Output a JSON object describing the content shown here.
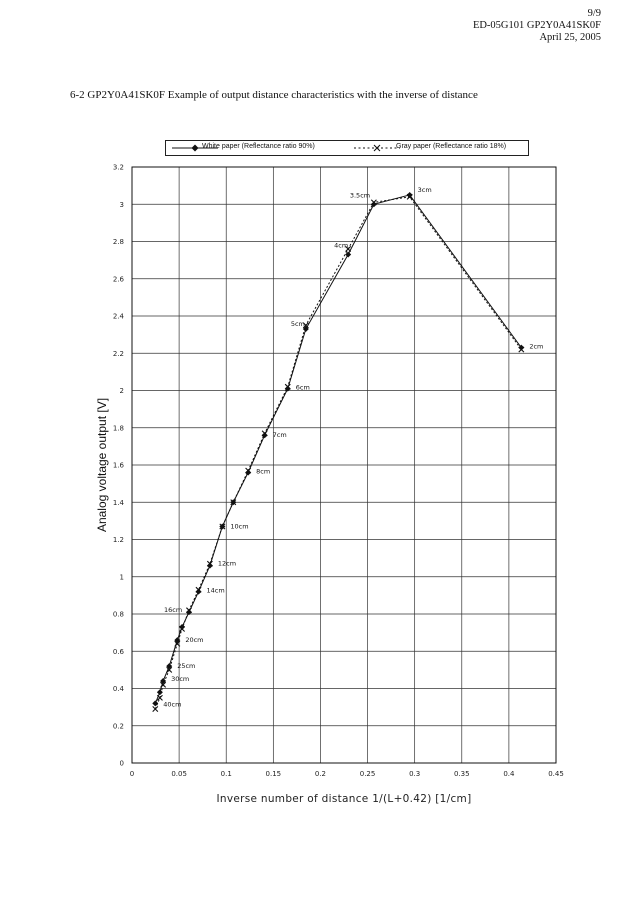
{
  "header": {
    "page": "9/9",
    "doc": "ED-05G101  GP2Y0A41SK0F",
    "date": "April 25, 2005"
  },
  "section_title": "6-2   GP2Y0A41SK0F Example of output distance characteristics with the inverse of distance",
  "chart_data": {
    "type": "line",
    "ylabel": "Analog voltage output [V]",
    "xlabel": "Inverse number of distance    1/(L+0.42)  [1/cm]",
    "xlim": [
      0,
      0.45
    ],
    "ylim": [
      0,
      3.2
    ],
    "xticks": [
      "0",
      "0.05",
      "0.1",
      "0.15",
      "0.2",
      "0.25",
      "0.3",
      "0.35",
      "0.4",
      "0.45"
    ],
    "yticks": [
      "0",
      "0.2",
      "0.4",
      "0.6",
      "0.8",
      "1",
      "1.2",
      "1.4",
      "1.6",
      "1.8",
      "2",
      "2.2",
      "2.4",
      "2.6",
      "2.8",
      "3",
      "3.2"
    ],
    "grid": true,
    "legend_position": "top",
    "series": [
      {
        "name": "White paper (Reflectance ratio 90%)",
        "style": "solid-diamond",
        "color": "#111111",
        "x": [
          0.0247,
          0.0296,
          0.033,
          0.0395,
          0.0481,
          0.0531,
          0.0605,
          0.0706,
          0.0827,
          0.0959,
          0.1075,
          0.1233,
          0.1408,
          0.1653,
          0.1845,
          0.2294,
          0.2567,
          0.2947,
          0.4132
        ],
        "y": [
          0.32,
          0.38,
          0.44,
          0.52,
          0.66,
          0.73,
          0.81,
          0.92,
          1.06,
          1.27,
          1.4,
          1.56,
          1.76,
          2.01,
          2.33,
          2.73,
          3.0,
          3.05,
          2.23
        ]
      },
      {
        "name": "Gray paper (Reflectance ratio 18%)",
        "style": "dashed-x",
        "color": "#111111",
        "x": [
          0.0247,
          0.0296,
          0.033,
          0.0395,
          0.0481,
          0.0531,
          0.0605,
          0.0706,
          0.0827,
          0.0959,
          0.1075,
          0.1233,
          0.1408,
          0.1653,
          0.1845,
          0.2294,
          0.2567,
          0.2947,
          0.4132
        ],
        "y": [
          0.29,
          0.35,
          0.42,
          0.5,
          0.64,
          0.72,
          0.82,
          0.93,
          1.07,
          1.27,
          1.4,
          1.57,
          1.77,
          2.02,
          2.35,
          2.76,
          3.01,
          3.04,
          2.22
        ]
      }
    ],
    "annotations": [
      {
        "text": "40cm",
        "x": 0.0247,
        "y": 0.32
      },
      {
        "text": "30cm",
        "x": 0.033,
        "y": 0.44
      },
      {
        "text": "25cm",
        "x": 0.0395,
        "y": 0.52
      },
      {
        "text": "20cm",
        "x": 0.0481,
        "y": 0.66
      },
      {
        "text": "16cm",
        "x": 0.0605,
        "y": 0.81
      },
      {
        "text": "14cm",
        "x": 0.0706,
        "y": 0.92
      },
      {
        "text": "12cm",
        "x": 0.0827,
        "y": 1.06
      },
      {
        "text": "10cm",
        "x": 0.0959,
        "y": 1.27
      },
      {
        "text": "8cm",
        "x": 0.1233,
        "y": 1.56
      },
      {
        "text": "7cm",
        "x": 0.1408,
        "y": 1.76
      },
      {
        "text": "6cm",
        "x": 0.1653,
        "y": 2.01
      },
      {
        "text": "5cm",
        "x": 0.1845,
        "y": 2.33
      },
      {
        "text": "4cm",
        "x": 0.2294,
        "y": 2.73
      },
      {
        "text": "3.5cm",
        "x": 0.2567,
        "y": 3.0
      },
      {
        "text": "3cm",
        "x": 0.2947,
        "y": 3.05
      },
      {
        "text": "2cm",
        "x": 0.4132,
        "y": 2.23
      }
    ]
  }
}
